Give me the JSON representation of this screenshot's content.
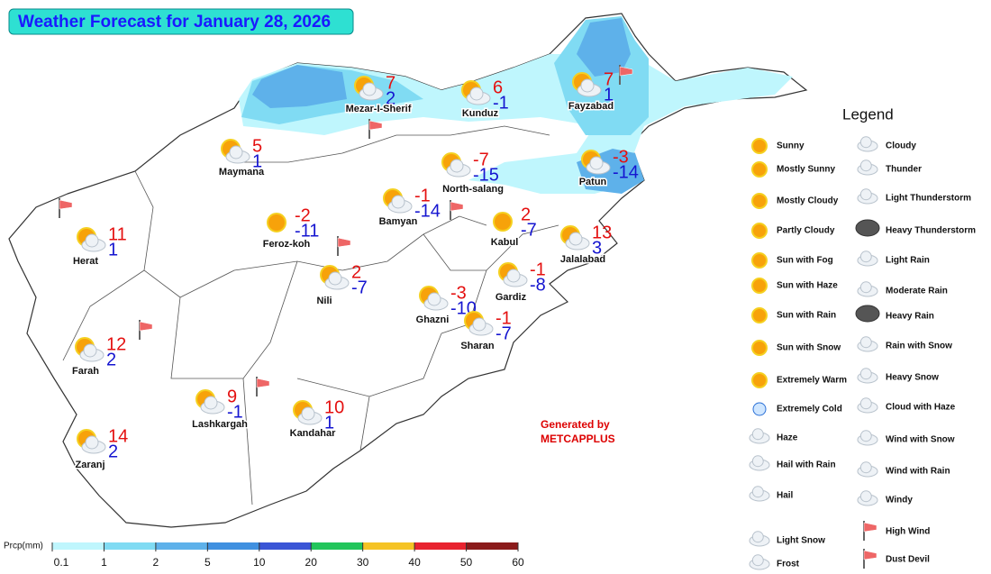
{
  "title": "Weather Forecast for January 28, 2026",
  "cities": [
    {
      "name": "Mezar-I-Sherif",
      "max": 7,
      "min": 2
    },
    {
      "name": "Kunduz",
      "max": 6,
      "min": -1
    },
    {
      "name": "Fayzabad",
      "max": 7,
      "min": 1
    },
    {
      "name": "Maymana",
      "max": 5,
      "min": 1
    },
    {
      "name": "North-salang",
      "max": -7,
      "min": -15
    },
    {
      "name": "Patun",
      "max": -3,
      "min": -14
    },
    {
      "name": "Herat",
      "max": 11,
      "min": 1
    },
    {
      "name": "Feroz-koh",
      "max": -2,
      "min": -11
    },
    {
      "name": "Bamyan",
      "max": -1,
      "min": -14
    },
    {
      "name": "Kabul",
      "max": 2,
      "min": -7
    },
    {
      "name": "Jalalabad",
      "max": 13,
      "min": 3
    },
    {
      "name": "Nili",
      "max": 2,
      "min": -7
    },
    {
      "name": "Gardiz",
      "max": -1,
      "min": -8
    },
    {
      "name": "Ghazni",
      "max": -3,
      "min": -10
    },
    {
      "name": "Sharan",
      "max": -1,
      "min": -7
    },
    {
      "name": "Farah",
      "max": 12,
      "min": 2
    },
    {
      "name": "Lashkargah",
      "max": 9,
      "min": -1
    },
    {
      "name": "Kandahar",
      "max": 10,
      "min": 1
    },
    {
      "name": "Zaranj",
      "max": 14,
      "min": 2
    }
  ],
  "legend": {
    "title": "Legend",
    "items": [
      "Sunny",
      "Mostly Sunny",
      "Mostly Cloudy",
      "Partly Cloudy",
      "Sun with Fog",
      "Sun with Haze",
      "Sun with Rain",
      "Sun with Snow",
      "Extremely Warm",
      "Extremely Cold",
      "Haze",
      "Hail with Rain",
      "Hail",
      "Light Snow",
      "Frost",
      "Cloudy",
      "Thunder",
      "Light Thunderstorm",
      "Heavy Thunderstorm",
      "Light Rain",
      "Moderate Rain",
      "Heavy Rain",
      "Rain with Snow",
      "Heavy Snow",
      "Cloud with Haze",
      "Wind with Snow",
      "Wind with Rain",
      "Windy",
      "High Wind",
      "Dust Devil"
    ]
  },
  "colorbar": {
    "label": "Prcp(mm)",
    "ticks": [
      0.1,
      1,
      2,
      5,
      10,
      20,
      30,
      40,
      50,
      60
    ],
    "colors": [
      "#bff6fd",
      "#80dbf3",
      "#5eb1ea",
      "#4090e0",
      "#3a55d6",
      "#22c55b",
      "#f5c325",
      "#e8232f",
      "#8b1b1b"
    ]
  },
  "credit": [
    "Generated by",
    "METCAPPLUS"
  ]
}
